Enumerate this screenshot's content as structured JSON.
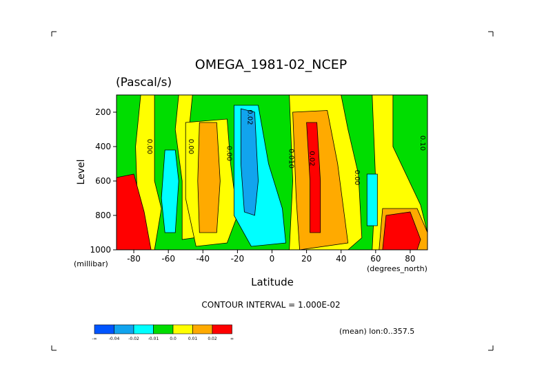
{
  "chart_data": {
    "type": "heatmap",
    "title": "OMEGA_1981-02_NCEP",
    "subtitle": "(Pascal/s)",
    "xlabel": "Latitude",
    "ylabel": "Level",
    "x_units": "(degrees_north)",
    "y_units": "(millibar)",
    "xlim": [
      -90,
      90
    ],
    "ylim": [
      1000,
      100
    ],
    "x_ticks": [
      "-80",
      "-60",
      "-40",
      "-20",
      "0",
      "20",
      "40",
      "60",
      "80"
    ],
    "x_tick_values": [
      -80,
      -60,
      -40,
      -20,
      0,
      20,
      40,
      60,
      80
    ],
    "y_ticks": [
      "200",
      "400",
      "600",
      "800",
      "1000"
    ],
    "y_tick_values": [
      200,
      400,
      600,
      800,
      1000
    ],
    "contour_interval": "CONTOUR INTERVAL = 1.000E-02",
    "footer": "(mean) lon:0..357.5",
    "contour_labels": [
      {
        "text": "0.00",
        "lat": -72,
        "level": 400
      },
      {
        "text": "0.00",
        "lat": -48,
        "level": 400
      },
      {
        "text": "0.00",
        "lat": -26,
        "level": 440
      },
      {
        "text": "0.02",
        "lat": -14,
        "level": 230
      },
      {
        "text": "0.010",
        "lat": 10,
        "level": 470
      },
      {
        "text": "0.02",
        "lat": 22,
        "level": 470
      },
      {
        "text": "0.00",
        "lat": 48,
        "level": 580
      },
      {
        "text": "0.10",
        "lat": 86,
        "level": 380
      }
    ],
    "colorbar": {
      "colors": [
        "#0055ff",
        "#11a4ee",
        "#00ffff",
        "#00dd00",
        "#ffff00",
        "#ffaa00",
        "#ff0000"
      ],
      "labels": [
        "-∞",
        "-0.04",
        "-0.02",
        "-0.01",
        "0.0",
        "0.01",
        "0.02",
        "∞"
      ]
    },
    "field": {
      "description_rows_top_to_bottom": "approximate dominant shading by latitude band",
      "bands": [
        {
          "lat_range": [
            -90,
            -79
          ],
          "class": "green/red",
          "level_range": [
            100,
            1000
          ]
        },
        {
          "lat_range": [
            -65,
            -55
          ],
          "class": "cyan",
          "level_range": [
            420,
            920
          ]
        },
        {
          "lat_range": [
            -42,
            -30
          ],
          "class": "orange",
          "level_range": [
            260,
            900
          ]
        },
        {
          "lat_range": [
            -20,
            -5
          ],
          "class": "cyan/blue",
          "level_range": [
            180,
            980
          ]
        },
        {
          "lat_range": [
            13,
            35
          ],
          "class": "orange/red",
          "level_range": [
            200,
            1000
          ]
        },
        {
          "lat_range": [
            56,
            62
          ],
          "class": "cyan",
          "level_range": [
            560,
            860
          ]
        },
        {
          "lat_range": [
            62,
            90
          ],
          "class": "orange/red",
          "level_range": [
            760,
            1000
          ]
        }
      ]
    }
  }
}
